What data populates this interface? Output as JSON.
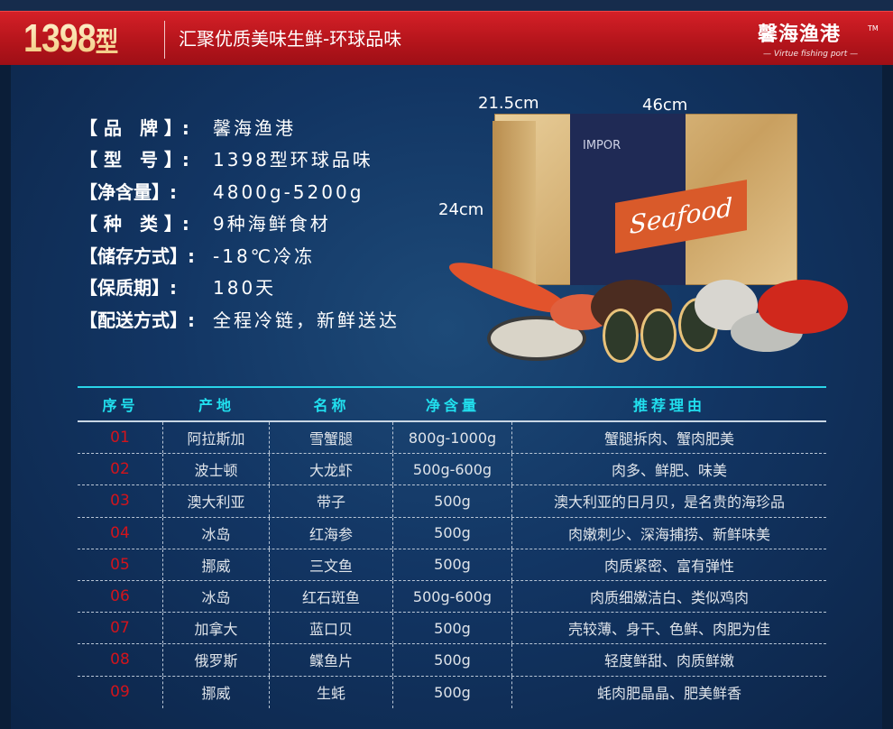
{
  "header": {
    "model_number": "1398",
    "model_suffix": "型",
    "slogan": "汇聚优质美味生鲜-环球品味",
    "brand_name": "馨海渔港",
    "brand_tagline": "— Virtue fishing port —",
    "trademark": "TM"
  },
  "specs": [
    {
      "label": "【 品　牌 】:",
      "value": "馨海渔港"
    },
    {
      "label": "【 型　号 】:",
      "value": "1398型环球品味"
    },
    {
      "label": "【净含量】:",
      "value": "4800g-5200g"
    },
    {
      "label": "【 种　类 】:",
      "value": "9种海鲜食材"
    },
    {
      "label": "【储存方式】:",
      "value": "-18℃冷冻"
    },
    {
      "label": "【保质期】:",
      "value": "180天"
    },
    {
      "label": "【配送方式】:",
      "value": "全程冷链，新鲜送达"
    }
  ],
  "product": {
    "depth": "21.5cm",
    "width": "46cm",
    "height": "24cm",
    "box_label": "IMPOR",
    "box_script": "Seafood"
  },
  "table": {
    "headers": [
      "序号",
      "产地",
      "名称",
      "净含量",
      "推荐理由"
    ],
    "rows": [
      [
        "01",
        "阿拉斯加",
        "雪蟹腿",
        "800g-1000g",
        "蟹腿拆肉、蟹肉肥美"
      ],
      [
        "02",
        "波士顿",
        "大龙虾",
        "500g-600g",
        "肉多、鲜肥、味美"
      ],
      [
        "03",
        "澳大利亚",
        "带子",
        "500g",
        "澳大利亚的日月贝，是名贵的海珍品"
      ],
      [
        "04",
        "冰岛",
        "红海参",
        "500g",
        "肉嫩刺少、深海捕捞、新鲜味美"
      ],
      [
        "05",
        "挪威",
        "三文鱼",
        "500g",
        "肉质紧密、富有弹性"
      ],
      [
        "06",
        "冰岛",
        "红石斑鱼",
        "500g-600g",
        "肉质细嫩洁白、类似鸡肉"
      ],
      [
        "07",
        "加拿大",
        "蓝口贝",
        "500g",
        "壳较薄、身干、色鲜、肉肥为佳"
      ],
      [
        "08",
        "俄罗斯",
        "鲽鱼片",
        "500g",
        "轻度鲜甜、肉质鲜嫩"
      ],
      [
        "09",
        "挪威",
        "生蚝",
        "500g",
        "蚝肉肥晶晶、肥美鲜香"
      ]
    ]
  },
  "colors": {
    "header_red": "#c0161d",
    "background_navy": "#123563",
    "table_header": "#21e0ef",
    "row_number": "#d2141c"
  }
}
